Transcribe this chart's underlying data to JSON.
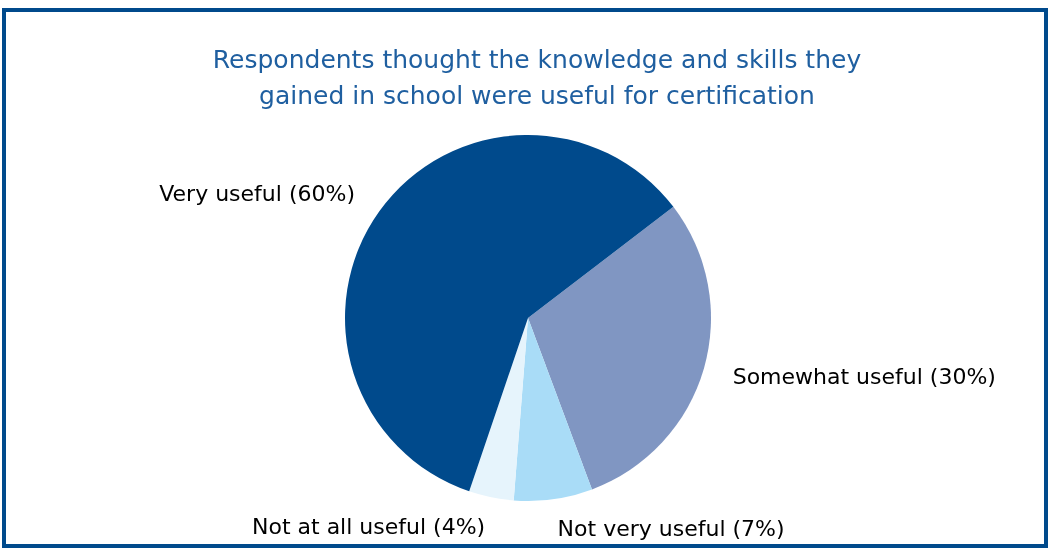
{
  "chart_data": {
    "type": "pie",
    "title": "Respondents thought the knowledge and skills they gained in school were useful for certification",
    "categories": [
      "Somewhat useful (30%)",
      "Not very useful (7%)",
      "Not at all useful (4%)",
      "Very useful (60%)"
    ],
    "values": [
      30,
      7,
      4,
      60
    ],
    "colors": [
      "#8096c2",
      "#a9dcf7",
      "#e6f4fc",
      "#004a8c"
    ]
  }
}
